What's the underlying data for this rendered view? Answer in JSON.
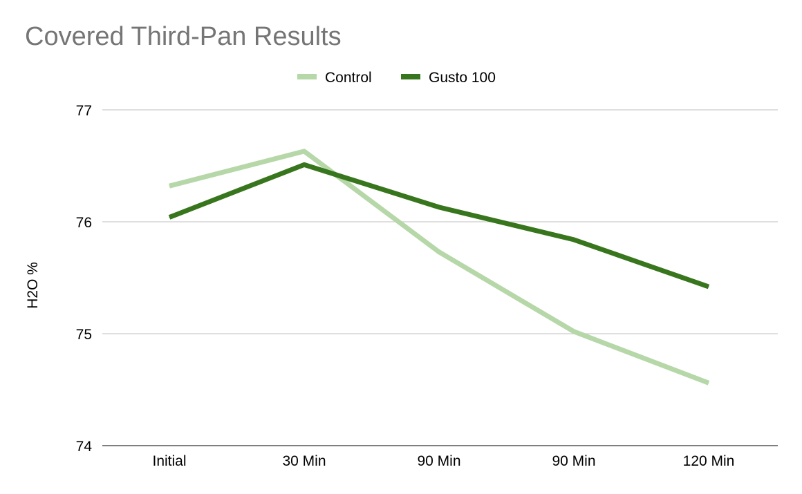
{
  "chart_data": {
    "type": "line",
    "title": "Covered Third-Pan Results",
    "xlabel": "",
    "ylabel": "H2O %",
    "categories": [
      "Initial",
      "30 Min",
      "90 Min",
      "90 Min",
      "120 Min"
    ],
    "series": [
      {
        "name": "Control",
        "values": [
          76.32,
          76.63,
          75.73,
          75.02,
          74.56
        ],
        "color": "#b6d7a8"
      },
      {
        "name": "Gusto 100",
        "values": [
          76.04,
          76.51,
          76.13,
          75.84,
          75.42
        ],
        "color": "#38761d"
      }
    ],
    "ylim": [
      74,
      77
    ],
    "yticks": [
      74,
      75,
      76,
      77
    ],
    "grid": true,
    "legend_position": "top"
  }
}
